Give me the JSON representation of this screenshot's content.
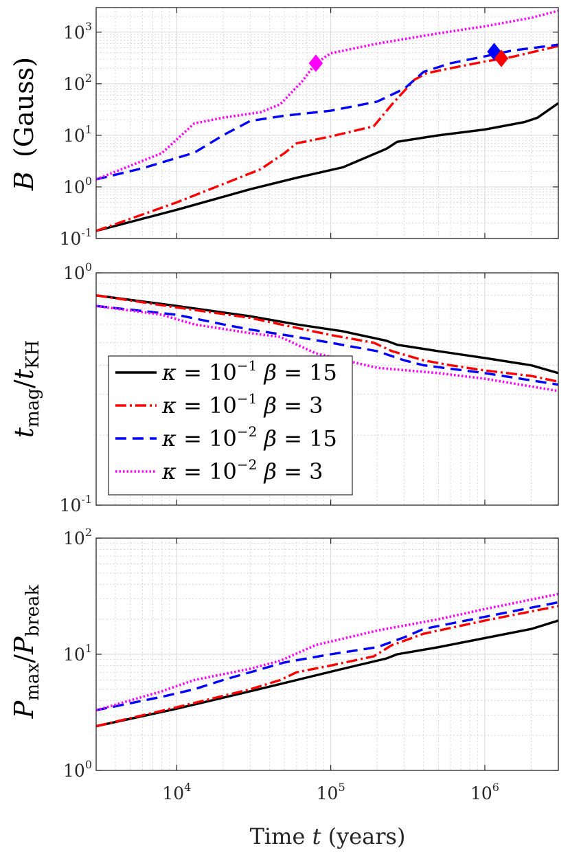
{
  "chart_data": [
    {
      "type": "line",
      "panel": "top",
      "ylabel": "B (Gauss)",
      "ylabel_main": "B",
      "ylabel_unit": "(Gauss)",
      "xscale": "log",
      "yscale": "log",
      "xlim": [
        3000,
        3000000
      ],
      "ylim": [
        0.1,
        3000
      ],
      "yticks": [
        {
          "base": "10",
          "exp": "-1"
        },
        {
          "base": "10",
          "exp": "0"
        },
        {
          "base": "10",
          "exp": "1"
        },
        {
          "base": "10",
          "exp": "2"
        },
        {
          "base": "10",
          "exp": "3"
        }
      ],
      "grid": true,
      "series": [
        {
          "name": "kappa=1e-1 beta=15",
          "color": "#000000",
          "style": "solid",
          "x": [
            3000,
            10000,
            30000,
            60000,
            120000,
            230000,
            270000,
            500000,
            1000000,
            1800000,
            2200000,
            3000000
          ],
          "y": [
            0.14,
            0.36,
            0.9,
            1.5,
            2.4,
            5.5,
            7.5,
            10,
            13,
            18,
            22,
            42
          ]
        },
        {
          "name": "kappa=1e-1 beta=3",
          "color": "#ff0000",
          "style": "dashdot",
          "x": [
            3000,
            10000,
            35000,
            50000,
            60000,
            100000,
            190000,
            250000,
            350000,
            420000,
            600000,
            1000000,
            1500000,
            3000000
          ],
          "y": [
            0.14,
            0.5,
            2.2,
            4.5,
            7.0,
            9.5,
            15,
            40,
            120,
            160,
            200,
            270,
            330,
            540
          ]
        },
        {
          "name": "kappa=1e-2 beta=15",
          "color": "#0000ff",
          "style": "dashed",
          "x": [
            3000,
            6000,
            13000,
            20000,
            30000,
            50000,
            100000,
            200000,
            300000,
            400000,
            600000,
            1000000,
            1500000,
            3000000
          ],
          "y": [
            1.4,
            2.3,
            4.6,
            10,
            19,
            24,
            30,
            45,
            80,
            170,
            250,
            340,
            440,
            570
          ]
        },
        {
          "name": "kappa=1e-2 beta=3",
          "color": "#ff00ff",
          "style": "dotted",
          "x": [
            3000,
            8000,
            13000,
            20000,
            35000,
            47000,
            65000,
            80000,
            100000,
            200000,
            500000,
            1000000,
            2000000,
            3000000
          ],
          "y": [
            1.4,
            4.5,
            17,
            22,
            28,
            40,
            110,
            250,
            390,
            600,
            950,
            1300,
            1900,
            2600
          ]
        }
      ],
      "markers": [
        {
          "x": 80000,
          "y": 250,
          "color": "#ff00ff"
        },
        {
          "x": 1150000,
          "y": 420,
          "color": "#0000ff"
        },
        {
          "x": 1280000,
          "y": 310,
          "color": "#ff0000"
        }
      ]
    },
    {
      "type": "line",
      "panel": "middle",
      "ylabel": "t_mag / t_KH",
      "ylabel_t1": "t",
      "ylabel_sub1": "mag",
      "ylabel_slash": "/",
      "ylabel_t2": "t",
      "ylabel_sub2": "KH",
      "xscale": "log",
      "yscale": "log",
      "xlim": [
        3000,
        3000000
      ],
      "ylim": [
        0.1,
        1
      ],
      "yticks": [
        {
          "base": "10",
          "exp": "-1"
        },
        {
          "base": "10",
          "exp": "0"
        }
      ],
      "grid": true,
      "series": [
        {
          "name": "kappa=1e-1 beta=15",
          "color": "#000000",
          "style": "solid",
          "x": [
            3000,
            10000,
            30000,
            60000,
            120000,
            230000,
            270000,
            500000,
            1000000,
            2000000,
            3000000
          ],
          "y": [
            0.8,
            0.72,
            0.65,
            0.6,
            0.56,
            0.51,
            0.49,
            0.46,
            0.43,
            0.4,
            0.37
          ]
        },
        {
          "name": "kappa=1e-1 beta=3",
          "color": "#ff0000",
          "style": "dashdot",
          "x": [
            3000,
            10000,
            30000,
            60000,
            100000,
            190000,
            250000,
            400000,
            600000,
            1000000,
            2000000,
            3000000
          ],
          "y": [
            0.8,
            0.71,
            0.64,
            0.58,
            0.54,
            0.5,
            0.46,
            0.42,
            0.4,
            0.38,
            0.36,
            0.34
          ]
        },
        {
          "name": "kappa=1e-2 beta=15",
          "color": "#0000ff",
          "style": "dashed",
          "x": [
            3000,
            10000,
            20000,
            30000,
            60000,
            100000,
            200000,
            300000,
            400000,
            1000000,
            3000000
          ],
          "y": [
            0.72,
            0.66,
            0.6,
            0.57,
            0.53,
            0.5,
            0.46,
            0.42,
            0.4,
            0.37,
            0.33
          ]
        },
        {
          "name": "kappa=1e-2 beta=3",
          "color": "#ff00ff",
          "style": "dotted",
          "x": [
            3000,
            8000,
            13000,
            30000,
            47000,
            80000,
            200000,
            500000,
            1000000,
            3000000
          ],
          "y": [
            0.72,
            0.66,
            0.6,
            0.55,
            0.53,
            0.45,
            0.39,
            0.37,
            0.35,
            0.31
          ]
        }
      ],
      "legend": {
        "location": "lower-left",
        "entries": [
          {
            "kappa_exp": "−1",
            "beta": "15",
            "color": "#000000",
            "style": "solid"
          },
          {
            "kappa_exp": "−1",
            "beta": "3",
            "color": "#ff0000",
            "style": "dashdot"
          },
          {
            "kappa_exp": "−2",
            "beta": "15",
            "color": "#0000ff",
            "style": "dashed"
          },
          {
            "kappa_exp": "−2",
            "beta": "3",
            "color": "#ff00ff",
            "style": "dotted"
          }
        ],
        "kappa_symbol": "κ",
        "beta_symbol": "β",
        "equals": "=",
        "ten": "10"
      }
    },
    {
      "type": "line",
      "panel": "bottom",
      "ylabel": "P_max / P_break",
      "ylabel_p1": "P",
      "ylabel_sub1": "max",
      "ylabel_slash": "/",
      "ylabel_p2": "P",
      "ylabel_sub2": "break",
      "xscale": "log",
      "yscale": "log",
      "xlim": [
        3000,
        3000000
      ],
      "ylim": [
        1,
        100
      ],
      "yticks": [
        {
          "base": "10",
          "exp": "0"
        },
        {
          "base": "10",
          "exp": "1"
        },
        {
          "base": "10",
          "exp": "2"
        }
      ],
      "xticks": [
        {
          "base": "10",
          "exp": "4",
          "value": 10000
        },
        {
          "base": "10",
          "exp": "5",
          "value": 100000
        },
        {
          "base": "10",
          "exp": "6",
          "value": 1000000
        }
      ],
      "xlabel": "Time t (years)",
      "xlabel_pre": "Time",
      "xlabel_var": "t",
      "xlabel_post": "(years)",
      "grid": true,
      "series": [
        {
          "name": "kappa=1e-1 beta=15",
          "color": "#000000",
          "style": "solid",
          "x": [
            3000,
            10000,
            30000,
            60000,
            120000,
            230000,
            270000,
            500000,
            1000000,
            2000000,
            3000000
          ],
          "y": [
            2.4,
            3.4,
            4.8,
            6.0,
            7.5,
            9.2,
            10,
            11.5,
            13.8,
            16.5,
            19.5
          ]
        },
        {
          "name": "kappa=1e-1 beta=3",
          "color": "#ff0000",
          "style": "dashdot",
          "x": [
            3000,
            10000,
            30000,
            47000,
            60000,
            100000,
            190000,
            250000,
            400000,
            1000000,
            3000000
          ],
          "y": [
            2.4,
            3.5,
            5.0,
            6.0,
            7.0,
            8.0,
            9.6,
            12,
            15,
            19.5,
            26
          ]
        },
        {
          "name": "kappa=1e-2 beta=15",
          "color": "#0000ff",
          "style": "dashed",
          "x": [
            3000,
            8000,
            13000,
            20000,
            30000,
            50000,
            100000,
            200000,
            300000,
            400000,
            1000000,
            3000000
          ],
          "y": [
            3.3,
            4.3,
            5.0,
            6.0,
            7.0,
            8.5,
            10,
            11.5,
            14,
            16.5,
            21,
            28
          ]
        },
        {
          "name": "kappa=1e-2 beta=3",
          "color": "#ff00ff",
          "style": "dotted",
          "x": [
            3000,
            8000,
            13000,
            30000,
            47000,
            80000,
            200000,
            500000,
            1000000,
            3000000
          ],
          "y": [
            3.3,
            4.8,
            6.0,
            7.5,
            8.8,
            12,
            16,
            20,
            24.5,
            33
          ]
        }
      ]
    }
  ]
}
